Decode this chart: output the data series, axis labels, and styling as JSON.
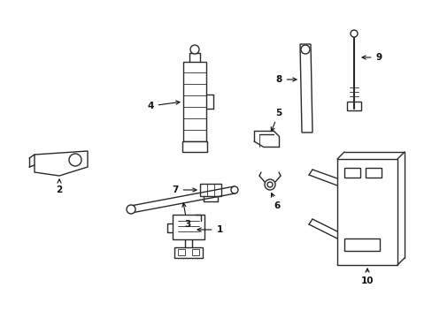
{
  "background_color": "#ffffff",
  "line_color": "#2a2a2a",
  "lw": 1.0,
  "fig_w": 4.89,
  "fig_h": 3.6,
  "dpi": 100
}
